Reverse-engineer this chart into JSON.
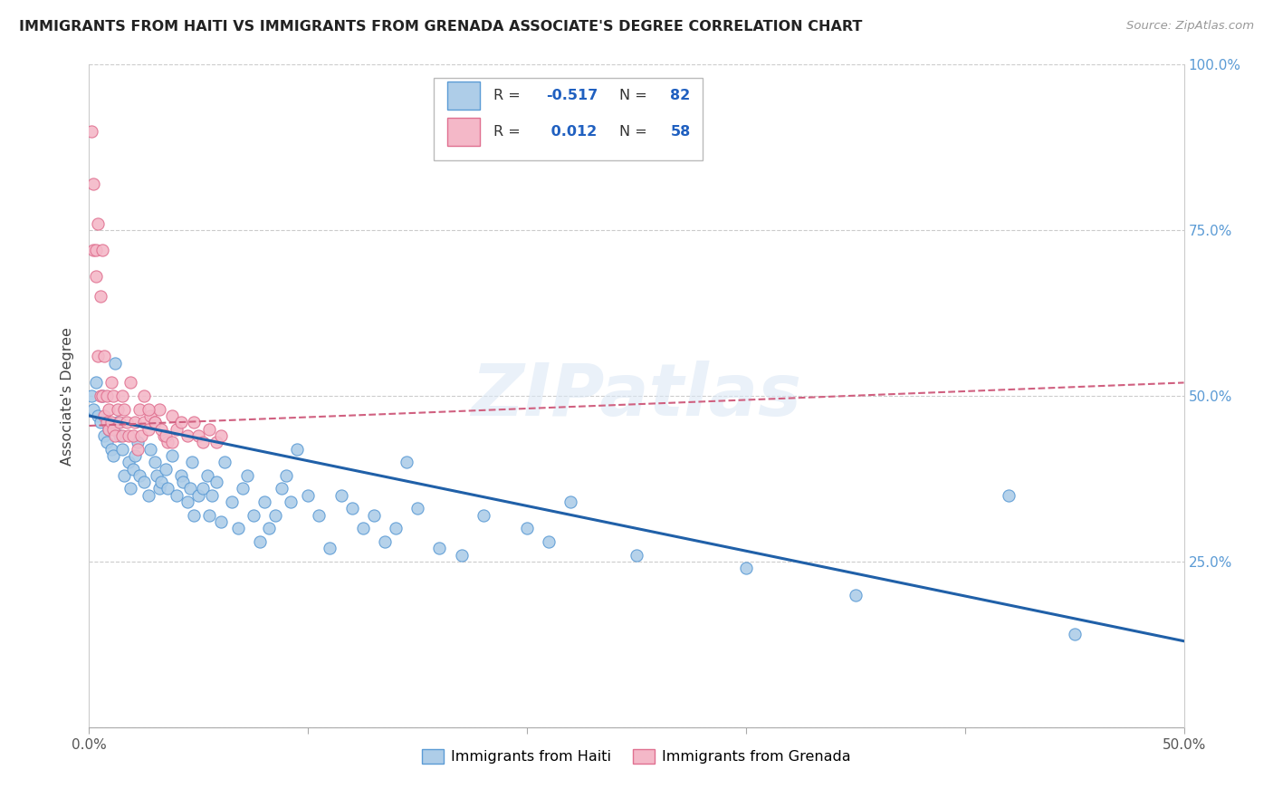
{
  "title": "IMMIGRANTS FROM HAITI VS IMMIGRANTS FROM GRENADA ASSOCIATE'S DEGREE CORRELATION CHART",
  "source": "Source: ZipAtlas.com",
  "ylabel": "Associate's Degree",
  "watermark": "ZIPatlas",
  "haiti_color": "#aecde8",
  "haiti_edge_color": "#5b9bd5",
  "grenada_color": "#f4b8c8",
  "grenada_edge_color": "#e07090",
  "haiti_R": "-0.517",
  "haiti_N": "82",
  "grenada_R": "0.012",
  "grenada_N": "58",
  "haiti_line_color": "#2060a8",
  "grenada_line_color": "#d06080",
  "xlim": [
    0.0,
    0.5
  ],
  "ylim": [
    0.0,
    1.0
  ],
  "haiti_x": [
    0.001,
    0.002,
    0.003,
    0.004,
    0.005,
    0.006,
    0.007,
    0.008,
    0.009,
    0.01,
    0.011,
    0.012,
    0.013,
    0.014,
    0.015,
    0.016,
    0.018,
    0.019,
    0.02,
    0.021,
    0.022,
    0.023,
    0.025,
    0.027,
    0.028,
    0.03,
    0.031,
    0.032,
    0.033,
    0.035,
    0.036,
    0.038,
    0.04,
    0.042,
    0.043,
    0.045,
    0.046,
    0.047,
    0.048,
    0.05,
    0.052,
    0.054,
    0.055,
    0.056,
    0.058,
    0.06,
    0.062,
    0.065,
    0.068,
    0.07,
    0.072,
    0.075,
    0.078,
    0.08,
    0.082,
    0.085,
    0.088,
    0.09,
    0.092,
    0.095,
    0.1,
    0.105,
    0.11,
    0.115,
    0.12,
    0.125,
    0.13,
    0.135,
    0.14,
    0.145,
    0.15,
    0.16,
    0.17,
    0.18,
    0.2,
    0.21,
    0.22,
    0.25,
    0.3,
    0.35,
    0.42,
    0.45
  ],
  "haiti_y": [
    0.5,
    0.48,
    0.52,
    0.47,
    0.46,
    0.5,
    0.44,
    0.43,
    0.45,
    0.42,
    0.41,
    0.55,
    0.46,
    0.44,
    0.42,
    0.38,
    0.4,
    0.36,
    0.39,
    0.41,
    0.43,
    0.38,
    0.37,
    0.35,
    0.42,
    0.4,
    0.38,
    0.36,
    0.37,
    0.39,
    0.36,
    0.41,
    0.35,
    0.38,
    0.37,
    0.34,
    0.36,
    0.4,
    0.32,
    0.35,
    0.36,
    0.38,
    0.32,
    0.35,
    0.37,
    0.31,
    0.4,
    0.34,
    0.3,
    0.36,
    0.38,
    0.32,
    0.28,
    0.34,
    0.3,
    0.32,
    0.36,
    0.38,
    0.34,
    0.42,
    0.35,
    0.32,
    0.27,
    0.35,
    0.33,
    0.3,
    0.32,
    0.28,
    0.3,
    0.4,
    0.33,
    0.27,
    0.26,
    0.32,
    0.3,
    0.28,
    0.34,
    0.26,
    0.24,
    0.2,
    0.35,
    0.14
  ],
  "grenada_x": [
    0.001,
    0.002,
    0.002,
    0.003,
    0.003,
    0.004,
    0.004,
    0.005,
    0.005,
    0.006,
    0.006,
    0.007,
    0.007,
    0.008,
    0.008,
    0.009,
    0.009,
    0.01,
    0.01,
    0.011,
    0.011,
    0.012,
    0.013,
    0.014,
    0.015,
    0.015,
    0.016,
    0.017,
    0.018,
    0.019,
    0.02,
    0.021,
    0.022,
    0.023,
    0.024,
    0.025,
    0.027,
    0.028,
    0.03,
    0.032,
    0.034,
    0.036,
    0.038,
    0.04,
    0.042,
    0.045,
    0.048,
    0.05,
    0.052,
    0.055,
    0.058,
    0.06,
    0.025,
    0.027,
    0.03,
    0.033,
    0.035,
    0.038
  ],
  "grenada_y": [
    0.9,
    0.82,
    0.72,
    0.72,
    0.68,
    0.56,
    0.76,
    0.65,
    0.5,
    0.72,
    0.5,
    0.47,
    0.56,
    0.5,
    0.46,
    0.48,
    0.45,
    0.52,
    0.46,
    0.5,
    0.45,
    0.44,
    0.48,
    0.46,
    0.44,
    0.5,
    0.48,
    0.46,
    0.44,
    0.52,
    0.44,
    0.46,
    0.42,
    0.48,
    0.44,
    0.46,
    0.45,
    0.47,
    0.46,
    0.48,
    0.44,
    0.43,
    0.47,
    0.45,
    0.46,
    0.44,
    0.46,
    0.44,
    0.43,
    0.45,
    0.43,
    0.44,
    0.5,
    0.48,
    0.46,
    0.45,
    0.44,
    0.43
  ],
  "haiti_line_x0": 0.0,
  "haiti_line_x1": 0.5,
  "haiti_line_y0": 0.47,
  "haiti_line_y1": 0.13,
  "grenada_line_x0": 0.0,
  "grenada_line_x1": 0.5,
  "grenada_line_y0": 0.455,
  "grenada_line_y1": 0.52
}
